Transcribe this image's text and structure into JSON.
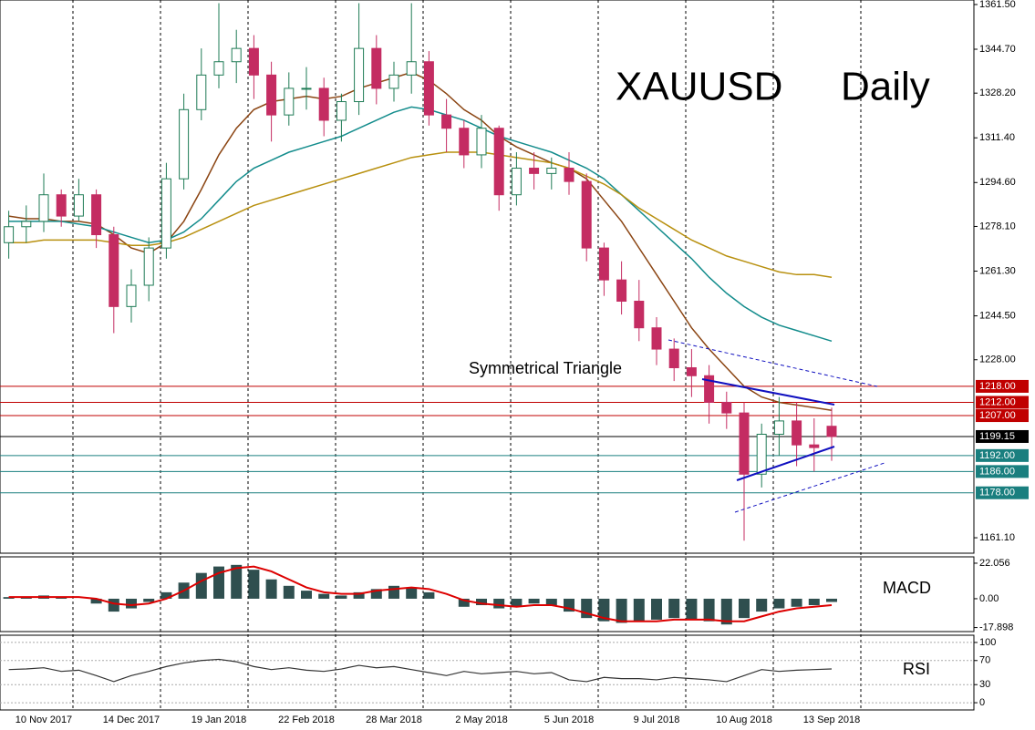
{
  "chart_data": [
    {
      "type": "candlestick",
      "title": "XAUUSD",
      "subtitle": "Daily",
      "annotation": "Symmetrical Triangle",
      "categories": [
        null,
        null,
        "10 Nov 2017",
        null,
        null,
        null,
        null,
        "14 Dec 2017",
        null,
        null,
        null,
        null,
        "19 Jan 2018",
        null,
        null,
        null,
        null,
        "22 Feb 2018",
        null,
        null,
        null,
        null,
        "28 Mar 2018",
        null,
        null,
        null,
        null,
        "2 May 2018",
        null,
        null,
        null,
        null,
        "5 Jun 2018",
        null,
        null,
        null,
        null,
        "9 Jul 2018",
        null,
        null,
        null,
        null,
        "10 Aug 2018",
        null,
        null,
        null,
        null,
        "13 Sep 2018"
      ],
      "open": [
        1272,
        1278,
        1280,
        1290,
        1282,
        1290,
        1275,
        1248,
        1256,
        1270,
        1296,
        1322,
        1335,
        1340,
        1345,
        1335,
        1320,
        1330,
        1330,
        1318,
        1325,
        1345,
        1330,
        1335,
        1340,
        1320,
        1315,
        1305,
        1315,
        1290,
        1300,
        1298,
        1300,
        1295,
        1270,
        1258,
        1250,
        1240,
        1232,
        1225,
        1222,
        1212,
        1208,
        1185,
        1200,
        1205,
        1196,
        1203
      ],
      "high": [
        1284,
        1286,
        1298,
        1292,
        1296,
        1292,
        1278,
        1262,
        1274,
        1302,
        1328,
        1345,
        1362,
        1352,
        1350,
        1340,
        1336,
        1338,
        1334,
        1328,
        1362,
        1350,
        1340,
        1362,
        1344,
        1326,
        1318,
        1320,
        1316,
        1306,
        1306,
        1304,
        1306,
        1298,
        1272,
        1265,
        1258,
        1244,
        1236,
        1232,
        1226,
        1216,
        1212,
        1204,
        1214,
        1212,
        1206,
        1210
      ],
      "low": [
        1266,
        1272,
        1276,
        1278,
        1280,
        1270,
        1238,
        1242,
        1250,
        1266,
        1292,
        1318,
        1330,
        1332,
        1326,
        1310,
        1316,
        1322,
        1312,
        1310,
        1320,
        1324,
        1325,
        1328,
        1316,
        1306,
        1300,
        1300,
        1284,
        1286,
        1292,
        1292,
        1290,
        1265,
        1252,
        1245,
        1235,
        1226,
        1220,
        1214,
        1204,
        1202,
        1160,
        1180,
        1192,
        1188,
        1186,
        1190
      ],
      "close": [
        1278,
        1280,
        1290,
        1282,
        1290,
        1275,
        1248,
        1256,
        1270,
        1296,
        1322,
        1335,
        1340,
        1345,
        1335,
        1320,
        1330,
        1330,
        1318,
        1325,
        1345,
        1330,
        1335,
        1340,
        1320,
        1315,
        1305,
        1315,
        1290,
        1300,
        1298,
        1300,
        1295,
        1270,
        1258,
        1250,
        1240,
        1232,
        1225,
        1222,
        1212,
        1208,
        1185,
        1200,
        1205,
        1196,
        1195,
        1199.15
      ],
      "up_color": "#1e7b55",
      "down_color": "#c42c62",
      "lines": [
        {
          "color": "#8b4513",
          "values": [
            1282,
            1281,
            1281,
            1280,
            1280,
            1279,
            1275,
            1270,
            1268,
            1272,
            1280,
            1292,
            1305,
            1315,
            1322,
            1325,
            1326,
            1327,
            1326,
            1327,
            1330,
            1332,
            1334,
            1336,
            1333,
            1328,
            1322,
            1318,
            1312,
            1308,
            1305,
            1302,
            1300,
            1296,
            1288,
            1280,
            1270,
            1260,
            1250,
            1240,
            1232,
            1225,
            1218,
            1214,
            1212,
            1211,
            1210,
            1209
          ]
        },
        {
          "color": "#138c8c",
          "values": [
            1280,
            1280,
            1280,
            1280,
            1279,
            1278,
            1276,
            1274,
            1272,
            1273,
            1276,
            1281,
            1288,
            1295,
            1300,
            1303,
            1306,
            1308,
            1310,
            1312,
            1315,
            1318,
            1321,
            1323,
            1322,
            1320,
            1318,
            1315,
            1312,
            1310,
            1308,
            1306,
            1303,
            1300,
            1296,
            1290,
            1284,
            1278,
            1272,
            1266,
            1259,
            1253,
            1248,
            1244,
            1241,
            1239,
            1237,
            1235
          ]
        },
        {
          "color": "#b8900f",
          "values": [
            1272,
            1272,
            1273,
            1273,
            1273,
            1273,
            1272,
            1271,
            1271,
            1272,
            1274,
            1277,
            1280,
            1283,
            1286,
            1288,
            1290,
            1292,
            1294,
            1296,
            1298,
            1300,
            1302,
            1304,
            1305,
            1306,
            1306,
            1306,
            1305,
            1304,
            1303,
            1302,
            1300,
            1297,
            1294,
            1290,
            1285,
            1281,
            1277,
            1273,
            1270,
            1267,
            1265,
            1263,
            1261,
            1260,
            1260,
            1259
          ]
        }
      ],
      "levels": [
        {
          "value": 1218,
          "label": "1218.00",
          "color": "#c00000"
        },
        {
          "value": 1212,
          "label": "1212.00",
          "color": "#c00000"
        },
        {
          "value": 1207,
          "label": "1207.00",
          "color": "#c00000"
        },
        {
          "value": 1199.15,
          "label": "1199.15",
          "color": "#000000"
        },
        {
          "value": 1192,
          "label": "1192.00",
          "color": "#1a7f7f"
        },
        {
          "value": 1186,
          "label": "1186.00",
          "color": "#1a7f7f"
        },
        {
          "value": 1178,
          "label": "1178.00",
          "color": "#1a7f7f"
        }
      ],
      "ylim": [
        1155.3,
        1363.2
      ],
      "yticks": [
        {
          "value": 1361.5,
          "label": "1361.50"
        },
        {
          "value": 1344.7,
          "label": "1344.70"
        },
        {
          "value": 1328.2,
          "label": "1328.20"
        },
        {
          "value": 1311.4,
          "label": "1311.40"
        },
        {
          "value": 1294.6,
          "label": "1294.60"
        },
        {
          "value": 1278.1,
          "label": "1278.10"
        },
        {
          "value": 1261.3,
          "label": "1261.30"
        },
        {
          "value": 1244.5,
          "label": "1244.50"
        },
        {
          "value": 1228,
          "label": "1228.00"
        },
        {
          "value": 1161.1,
          "label": "1161.10"
        }
      ]
    },
    {
      "type": "macd",
      "title": "MACD",
      "color": "#2f4f4f",
      "signal_color": "#dd0000",
      "values": [
        1,
        1,
        2,
        1,
        0,
        -3,
        -8,
        -6,
        -2,
        4,
        10,
        16,
        20,
        21,
        18,
        12,
        8,
        5,
        3,
        2,
        4,
        6,
        8,
        7,
        4,
        0,
        -5,
        -4,
        -6,
        -5,
        -3,
        -4,
        -8,
        -12,
        -14,
        -15,
        -14,
        -13,
        -12,
        -13,
        -14,
        -16,
        -12,
        -8,
        -6,
        -5,
        -4,
        -2
      ],
      "signal": [
        1,
        1,
        1,
        1,
        1,
        0,
        -3,
        -4,
        -3,
        0,
        5,
        11,
        16,
        19,
        20,
        17,
        12,
        7,
        4,
        3,
        3,
        5,
        6,
        7,
        6,
        3,
        -1,
        -3,
        -4,
        -5,
        -4,
        -4,
        -6,
        -9,
        -12,
        -14,
        -14,
        -14,
        -13,
        -13,
        -13,
        -14,
        -14,
        -11,
        -8,
        -6,
        -5,
        -4
      ],
      "ylim": [
        -20.4,
        26.0
      ],
      "yticks": [
        22.056,
        {
          "value": 0,
          "label": "0.00"
        },
        -17.898
      ]
    },
    {
      "type": "rsi",
      "title": "RSI",
      "color": "#333333",
      "values": [
        55,
        56,
        58,
        52,
        54,
        45,
        35,
        45,
        52,
        60,
        66,
        70,
        72,
        68,
        60,
        55,
        58,
        54,
        52,
        56,
        62,
        58,
        60,
        55,
        50,
        45,
        52,
        48,
        50,
        52,
        48,
        50,
        38,
        35,
        42,
        40,
        40,
        38,
        42,
        40,
        38,
        35,
        45,
        55,
        52,
        54,
        55,
        56
      ],
      "ylim": [
        -12,
        112
      ],
      "yticks": [
        100,
        70,
        30,
        0
      ]
    }
  ]
}
